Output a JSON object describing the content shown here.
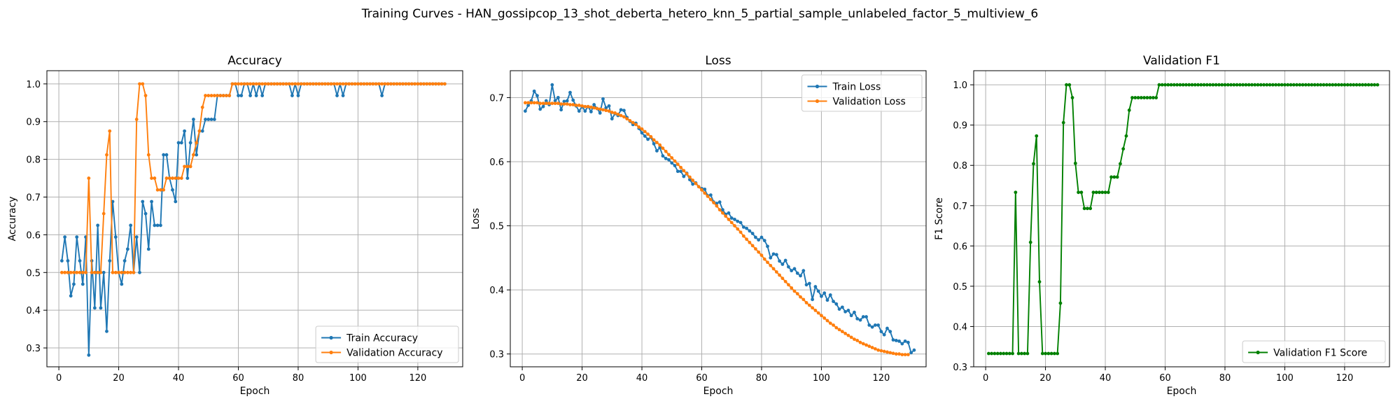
{
  "suptitle": "Training Curves - HAN_gossipcop_13_shot_deberta_hetero_knn_5_partial_sample_unlabeled_factor_5_multiview_6",
  "colors": {
    "blue": "#1f77b4",
    "orange": "#ff7f0e",
    "green": "#008000"
  },
  "chart_data": [
    {
      "type": "line",
      "title": "Accuracy",
      "xlabel": "Epoch",
      "ylabel": "Accuracy",
      "xlim": [
        -4,
        135
      ],
      "ylim": [
        0.25,
        1.035
      ],
      "xticks": [
        0,
        20,
        40,
        60,
        80,
        100,
        120
      ],
      "xtick_labels": [
        "0",
        "20",
        "40",
        "60",
        "80",
        "100",
        "120"
      ],
      "yticks": [
        0.3,
        0.4,
        0.5,
        0.6,
        0.7,
        0.8,
        0.9,
        1.0
      ],
      "ytick_labels": [
        "0.3",
        "0.4",
        "0.5",
        "0.6",
        "0.7",
        "0.8",
        "0.9",
        "1.0"
      ],
      "grid": true,
      "legend_position": "lower-right",
      "series": [
        {
          "name": "Train Accuracy",
          "color": "#1f77b4",
          "x_start": 1,
          "values": [
            0.531,
            0.594,
            0.531,
            0.438,
            0.469,
            0.594,
            0.531,
            0.469,
            0.594,
            0.281,
            0.531,
            0.406,
            0.625,
            0.406,
            0.5,
            0.344,
            0.531,
            0.688,
            0.594,
            0.5,
            0.469,
            0.531,
            0.562,
            0.625,
            0.5,
            0.594,
            0.5,
            0.688,
            0.656,
            0.562,
            0.688,
            0.625,
            0.625,
            0.625,
            0.812,
            0.812,
            0.75,
            0.719,
            0.688,
            0.844,
            0.844,
            0.875,
            0.75,
            0.844,
            0.906,
            0.812,
            0.875,
            0.875,
            0.906,
            0.906,
            0.906,
            0.906,
            0.969,
            0.969,
            0.969,
            0.969,
            0.969,
            1.0,
            1.0,
            0.969,
            0.969,
            1.0,
            1.0,
            0.969,
            1.0,
            0.969,
            1.0,
            0.969,
            1.0,
            1.0,
            1.0,
            1.0,
            1.0,
            1.0,
            1.0,
            1.0,
            1.0,
            0.969,
            1.0,
            0.969,
            1.0,
            1.0,
            1.0,
            1.0,
            1.0,
            1.0,
            1.0,
            1.0,
            1.0,
            1.0,
            1.0,
            1.0,
            0.969,
            1.0,
            0.969,
            1.0,
            1.0,
            1.0,
            1.0,
            1.0,
            1.0,
            1.0,
            1.0,
            1.0,
            1.0,
            1.0,
            1.0,
            0.969,
            1.0,
            1.0,
            1.0,
            1.0,
            1.0,
            1.0,
            1.0,
            1.0,
            1.0,
            1.0,
            1.0,
            1.0,
            1.0,
            1.0,
            1.0,
            1.0,
            1.0,
            1.0,
            1.0,
            1.0,
            1.0
          ]
        },
        {
          "name": "Validation Accuracy",
          "color": "#ff7f0e",
          "x_start": 1,
          "values": [
            0.5,
            0.5,
            0.5,
            0.5,
            0.5,
            0.5,
            0.5,
            0.5,
            0.5,
            0.75,
            0.5,
            0.5,
            0.5,
            0.5,
            0.656,
            0.812,
            0.875,
            0.5,
            0.5,
            0.5,
            0.5,
            0.5,
            0.5,
            0.5,
            0.5,
            0.906,
            1.0,
            1.0,
            0.969,
            0.812,
            0.75,
            0.75,
            0.719,
            0.719,
            0.719,
            0.75,
            0.75,
            0.75,
            0.75,
            0.75,
            0.75,
            0.781,
            0.781,
            0.781,
            0.812,
            0.844,
            0.875,
            0.938,
            0.969,
            0.969,
            0.969,
            0.969,
            0.969,
            0.969,
            0.969,
            0.969,
            0.969,
            1.0,
            1.0,
            1.0,
            1.0,
            1.0,
            1.0,
            1.0,
            1.0,
            1.0,
            1.0,
            1.0,
            1.0,
            1.0,
            1.0,
            1.0,
            1.0,
            1.0,
            1.0,
            1.0,
            1.0,
            1.0,
            1.0,
            1.0,
            1.0,
            1.0,
            1.0,
            1.0,
            1.0,
            1.0,
            1.0,
            1.0,
            1.0,
            1.0,
            1.0,
            1.0,
            1.0,
            1.0,
            1.0,
            1.0,
            1.0,
            1.0,
            1.0,
            1.0,
            1.0,
            1.0,
            1.0,
            1.0,
            1.0,
            1.0,
            1.0,
            1.0,
            1.0,
            1.0,
            1.0,
            1.0,
            1.0,
            1.0,
            1.0,
            1.0,
            1.0,
            1.0,
            1.0,
            1.0,
            1.0,
            1.0,
            1.0,
            1.0,
            1.0,
            1.0,
            1.0,
            1.0,
            1.0
          ]
        }
      ]
    },
    {
      "type": "line",
      "title": "Loss",
      "xlabel": "Epoch",
      "ylabel": "Loss",
      "xlim": [
        -4,
        135
      ],
      "ylim": [
        0.28,
        0.742
      ],
      "xticks": [
        0,
        20,
        40,
        60,
        80,
        100,
        120
      ],
      "xtick_labels": [
        "0",
        "20",
        "40",
        "60",
        "80",
        "100",
        "120"
      ],
      "yticks": [
        0.3,
        0.4,
        0.5,
        0.6,
        0.7
      ],
      "ytick_labels": [
        "0.3",
        "0.4",
        "0.5",
        "0.6",
        "0.7"
      ],
      "grid": true,
      "legend_position": "upper-right",
      "series": [
        {
          "name": "Train Loss",
          "color": "#1f77b4",
          "x_start": 1,
          "values": [
            0.679,
            0.688,
            0.695,
            0.71,
            0.703,
            0.682,
            0.686,
            0.695,
            0.689,
            0.72,
            0.695,
            0.7,
            0.681,
            0.694,
            0.695,
            0.708,
            0.696,
            0.687,
            0.679,
            0.686,
            0.679,
            0.686,
            0.678,
            0.689,
            0.683,
            0.676,
            0.698,
            0.684,
            0.687,
            0.667,
            0.675,
            0.672,
            0.681,
            0.68,
            0.669,
            0.663,
            0.658,
            0.66,
            0.652,
            0.645,
            0.64,
            0.635,
            0.638,
            0.628,
            0.617,
            0.622,
            0.609,
            0.605,
            0.603,
            0.598,
            0.594,
            0.585,
            0.585,
            0.577,
            0.582,
            0.572,
            0.565,
            0.567,
            0.561,
            0.558,
            0.557,
            0.547,
            0.548,
            0.537,
            0.535,
            0.537,
            0.525,
            0.518,
            0.52,
            0.512,
            0.51,
            0.507,
            0.505,
            0.498,
            0.496,
            0.492,
            0.488,
            0.482,
            0.478,
            0.482,
            0.477,
            0.468,
            0.45,
            0.456,
            0.455,
            0.445,
            0.44,
            0.446,
            0.436,
            0.43,
            0.433,
            0.426,
            0.422,
            0.43,
            0.408,
            0.41,
            0.385,
            0.405,
            0.398,
            0.39,
            0.395,
            0.384,
            0.392,
            0.382,
            0.378,
            0.37,
            0.373,
            0.366,
            0.368,
            0.36,
            0.365,
            0.355,
            0.353,
            0.358,
            0.358,
            0.345,
            0.342,
            0.345,
            0.345,
            0.335,
            0.33,
            0.34,
            0.335,
            0.322,
            0.321,
            0.32,
            0.316,
            0.32,
            0.318,
            0.302,
            0.306
          ]
        },
        {
          "name": "Validation Loss",
          "color": "#ff7f0e",
          "x_start": 1,
          "values": [
            0.692,
            0.692,
            0.692,
            0.692,
            0.692,
            0.691,
            0.691,
            0.691,
            0.691,
            0.691,
            0.691,
            0.691,
            0.69,
            0.69,
            0.69,
            0.689,
            0.689,
            0.688,
            0.688,
            0.687,
            0.686,
            0.686,
            0.685,
            0.684,
            0.683,
            0.682,
            0.681,
            0.68,
            0.679,
            0.677,
            0.676,
            0.674,
            0.672,
            0.67,
            0.667,
            0.664,
            0.661,
            0.658,
            0.654,
            0.651,
            0.647,
            0.643,
            0.639,
            0.634,
            0.63,
            0.626,
            0.621,
            0.616,
            0.611,
            0.606,
            0.601,
            0.596,
            0.591,
            0.586,
            0.581,
            0.576,
            0.571,
            0.566,
            0.561,
            0.556,
            0.551,
            0.546,
            0.541,
            0.536,
            0.531,
            0.525,
            0.52,
            0.515,
            0.51,
            0.505,
            0.5,
            0.495,
            0.49,
            0.484,
            0.479,
            0.474,
            0.469,
            0.464,
            0.459,
            0.454,
            0.448,
            0.443,
            0.438,
            0.433,
            0.428,
            0.423,
            0.418,
            0.413,
            0.408,
            0.403,
            0.398,
            0.394,
            0.389,
            0.385,
            0.38,
            0.376,
            0.372,
            0.368,
            0.364,
            0.36,
            0.356,
            0.352,
            0.348,
            0.345,
            0.341,
            0.338,
            0.335,
            0.332,
            0.329,
            0.326,
            0.323,
            0.321,
            0.318,
            0.316,
            0.314,
            0.312,
            0.31,
            0.308,
            0.306,
            0.305,
            0.304,
            0.303,
            0.302,
            0.301,
            0.3,
            0.3,
            0.299,
            0.299,
            0.299
          ]
        }
      ]
    },
    {
      "type": "line",
      "title": "Validation F1",
      "xlabel": "Epoch",
      "ylabel": "F1 Score",
      "xlim": [
        -4,
        135
      ],
      "ylim": [
        0.3,
        1.035
      ],
      "xticks": [
        0,
        20,
        40,
        60,
        80,
        100,
        120
      ],
      "xtick_labels": [
        "0",
        "20",
        "40",
        "60",
        "80",
        "100",
        "120"
      ],
      "yticks": [
        0.3,
        0.4,
        0.5,
        0.6,
        0.7,
        0.8,
        0.9,
        1.0
      ],
      "ytick_labels": [
        "0.3",
        "0.4",
        "0.5",
        "0.6",
        "0.7",
        "0.8",
        "0.9",
        "1.0"
      ],
      "grid": true,
      "legend_position": "lower-right",
      "series": [
        {
          "name": "Validation F1 Score",
          "color": "#008000",
          "x_start": 1,
          "values": [
            0.333,
            0.333,
            0.333,
            0.333,
            0.333,
            0.333,
            0.333,
            0.333,
            0.333,
            0.733,
            0.333,
            0.333,
            0.333,
            0.333,
            0.609,
            0.804,
            0.873,
            0.511,
            0.333,
            0.333,
            0.333,
            0.333,
            0.333,
            0.333,
            0.458,
            0.906,
            1.0,
            1.0,
            0.968,
            0.805,
            0.733,
            0.733,
            0.693,
            0.693,
            0.693,
            0.733,
            0.733,
            0.733,
            0.733,
            0.733,
            0.733,
            0.771,
            0.771,
            0.771,
            0.804,
            0.841,
            0.873,
            0.937,
            0.968,
            0.968,
            0.968,
            0.968,
            0.968,
            0.968,
            0.968,
            0.968,
            0.968,
            1.0,
            1.0,
            1.0,
            1.0,
            1.0,
            1.0,
            1.0,
            1.0,
            1.0,
            1.0,
            1.0,
            1.0,
            1.0,
            1.0,
            1.0,
            1.0,
            1.0,
            1.0,
            1.0,
            1.0,
            1.0,
            1.0,
            1.0,
            1.0,
            1.0,
            1.0,
            1.0,
            1.0,
            1.0,
            1.0,
            1.0,
            1.0,
            1.0,
            1.0,
            1.0,
            1.0,
            1.0,
            1.0,
            1.0,
            1.0,
            1.0,
            1.0,
            1.0,
            1.0,
            1.0,
            1.0,
            1.0,
            1.0,
            1.0,
            1.0,
            1.0,
            1.0,
            1.0,
            1.0,
            1.0,
            1.0,
            1.0,
            1.0,
            1.0,
            1.0,
            1.0,
            1.0,
            1.0,
            1.0,
            1.0,
            1.0,
            1.0,
            1.0,
            1.0,
            1.0,
            1.0,
            1.0,
            1.0,
            1.0
          ]
        }
      ]
    }
  ]
}
